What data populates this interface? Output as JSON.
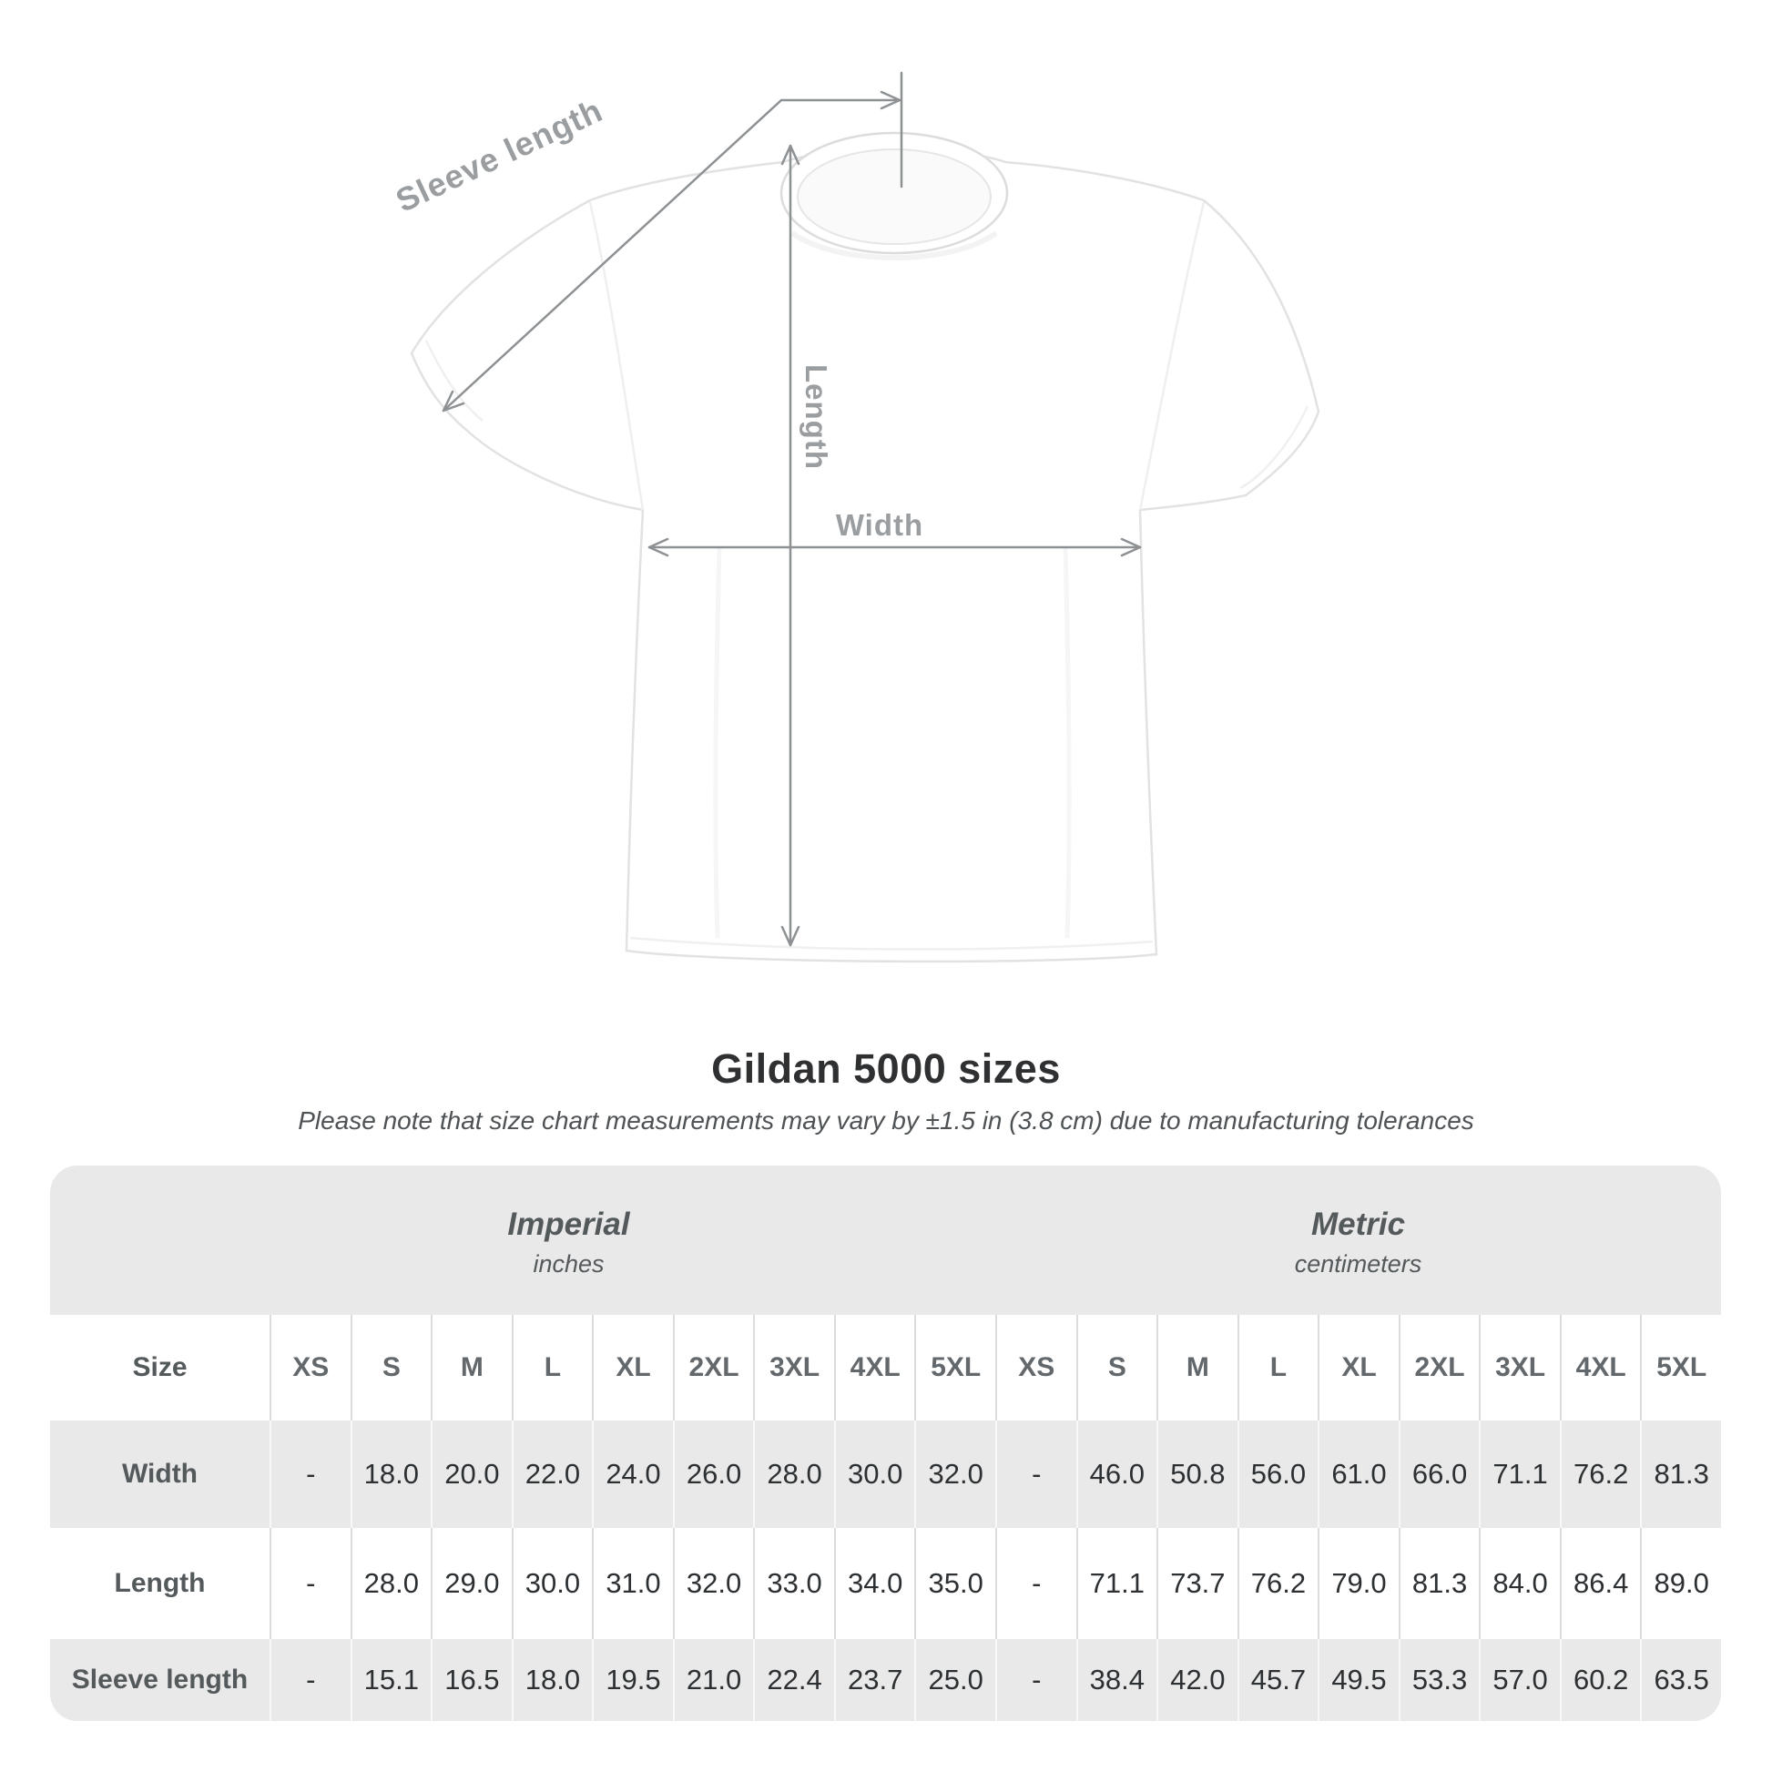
{
  "diagram": {
    "sleeve_length": "Sleeve length",
    "length": "Length",
    "width": "Width"
  },
  "title": "Gildan 5000 sizes",
  "subtitle": "Please note that size chart measurements may vary by ±1.5 in (3.8 cm) due to manufacturing tolerances",
  "table": {
    "size_label": "Size",
    "imperial": {
      "title": "Imperial",
      "unit": "inches"
    },
    "metric": {
      "title": "Metric",
      "unit": "centimeters"
    },
    "sizes_imperial": [
      "XS",
      "S",
      "M",
      "L",
      "XL",
      "2XL",
      "3XL",
      "4XL",
      "5XL"
    ],
    "sizes_metric": [
      "XS",
      "S",
      "M",
      "L",
      "XL",
      "2XL",
      "3XL",
      "4XL",
      "5XL"
    ],
    "rows": [
      {
        "label": "Width",
        "imperial": [
          "-",
          "18.0",
          "20.0",
          "22.0",
          "24.0",
          "26.0",
          "28.0",
          "30.0",
          "32.0"
        ],
        "metric": [
          "-",
          "46.0",
          "50.8",
          "56.0",
          "61.0",
          "66.0",
          "71.1",
          "76.2",
          "81.3"
        ]
      },
      {
        "label": "Length",
        "imperial": [
          "-",
          "28.0",
          "29.0",
          "30.0",
          "31.0",
          "32.0",
          "33.0",
          "34.0",
          "35.0"
        ],
        "metric": [
          "-",
          "71.1",
          "73.7",
          "76.2",
          "79.0",
          "81.3",
          "84.0",
          "86.4",
          "89.0"
        ]
      },
      {
        "label": "Sleeve length",
        "imperial": [
          "-",
          "15.1",
          "16.5",
          "18.0",
          "19.5",
          "21.0",
          "22.4",
          "23.7",
          "25.0"
        ],
        "metric": [
          "-",
          "38.4",
          "42.0",
          "45.7",
          "49.5",
          "53.3",
          "57.0",
          "60.2",
          "63.5"
        ]
      }
    ]
  },
  "chart_data": {
    "type": "table",
    "title": "Gildan 5000 sizes",
    "note": "Please note that size chart measurements may vary by ±1.5 in (3.8 cm) due to manufacturing tolerances",
    "unit_groups": [
      {
        "name": "Imperial",
        "unit": "inches",
        "sizes": [
          "XS",
          "S",
          "M",
          "L",
          "XL",
          "2XL",
          "3XL",
          "4XL",
          "5XL"
        ],
        "width": [
          null,
          18.0,
          20.0,
          22.0,
          24.0,
          26.0,
          28.0,
          30.0,
          32.0
        ],
        "length": [
          null,
          28.0,
          29.0,
          30.0,
          31.0,
          32.0,
          33.0,
          34.0,
          35.0
        ],
        "sleeve_length": [
          null,
          15.1,
          16.5,
          18.0,
          19.5,
          21.0,
          22.4,
          23.7,
          25.0
        ]
      },
      {
        "name": "Metric",
        "unit": "centimeters",
        "sizes": [
          "XS",
          "S",
          "M",
          "L",
          "XL",
          "2XL",
          "3XL",
          "4XL",
          "5XL"
        ],
        "width": [
          null,
          46.0,
          50.8,
          56.0,
          61.0,
          66.0,
          71.1,
          76.2,
          81.3
        ],
        "length": [
          null,
          71.1,
          73.7,
          76.2,
          79.0,
          81.3,
          84.0,
          86.4,
          89.0
        ],
        "sleeve_length": [
          null,
          38.4,
          42.0,
          45.7,
          49.5,
          53.3,
          57.0,
          60.2,
          63.5
        ]
      }
    ]
  },
  "colors": {
    "row_shade": "#e9e9e9",
    "label_text": "#54595c",
    "value_text": "#2d3032",
    "annotation_gray": "#9a9ea1",
    "line_gray": "#8d9194"
  }
}
